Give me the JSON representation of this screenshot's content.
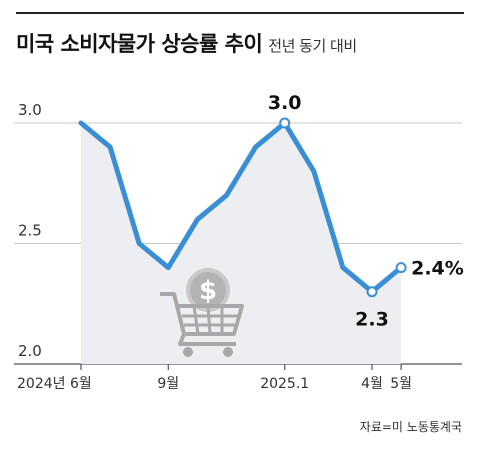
{
  "header": {
    "title": "미국 소비자물가 상승률 추이",
    "subtitle": "전년 동기 대비"
  },
  "source": "자료=미 노동통계국",
  "colors": {
    "line": "#3a8fd4",
    "area": "#eceef1",
    "grid": "#c8c8c8",
    "axis": "#555555"
  },
  "illustration": "shopping-cart-dollar-icon",
  "chart_data": {
    "type": "area",
    "title": "미국 소비자물가 상승률 추이",
    "subtitle": "전년 동기 대비",
    "xlabel": "",
    "ylabel": "",
    "ylim": [
      2.0,
      3.1
    ],
    "grid": true,
    "x": [
      "2024-06",
      "2024-07",
      "2024-08",
      "2024-09",
      "2024-10",
      "2024-11",
      "2024-12",
      "2025-01",
      "2025-02",
      "2025-03",
      "2025-04",
      "2025-05"
    ],
    "values": [
      3.0,
      2.9,
      2.5,
      2.4,
      2.6,
      2.7,
      2.9,
      3.0,
      2.8,
      2.4,
      2.3,
      2.4
    ],
    "y_ticks": [
      {
        "value": 3.0,
        "label": "3.0"
      },
      {
        "value": 2.5,
        "label": "2.5"
      },
      {
        "value": 2.0,
        "label": "2.0"
      }
    ],
    "x_ticks": [
      {
        "index": 0,
        "label": "2024년 6월"
      },
      {
        "index": 3,
        "label": "9월"
      },
      {
        "index": 7,
        "label": "2025.1"
      },
      {
        "index": 10,
        "label": "4월"
      },
      {
        "index": 11,
        "label": "5월"
      }
    ],
    "data_labels": [
      {
        "index": 7,
        "label": "3.0",
        "pos": "above"
      },
      {
        "index": 10,
        "label": "2.3",
        "pos": "below"
      },
      {
        "index": 11,
        "label": "2.4%",
        "pos": "right"
      }
    ],
    "markers": [
      7,
      10,
      11
    ]
  }
}
